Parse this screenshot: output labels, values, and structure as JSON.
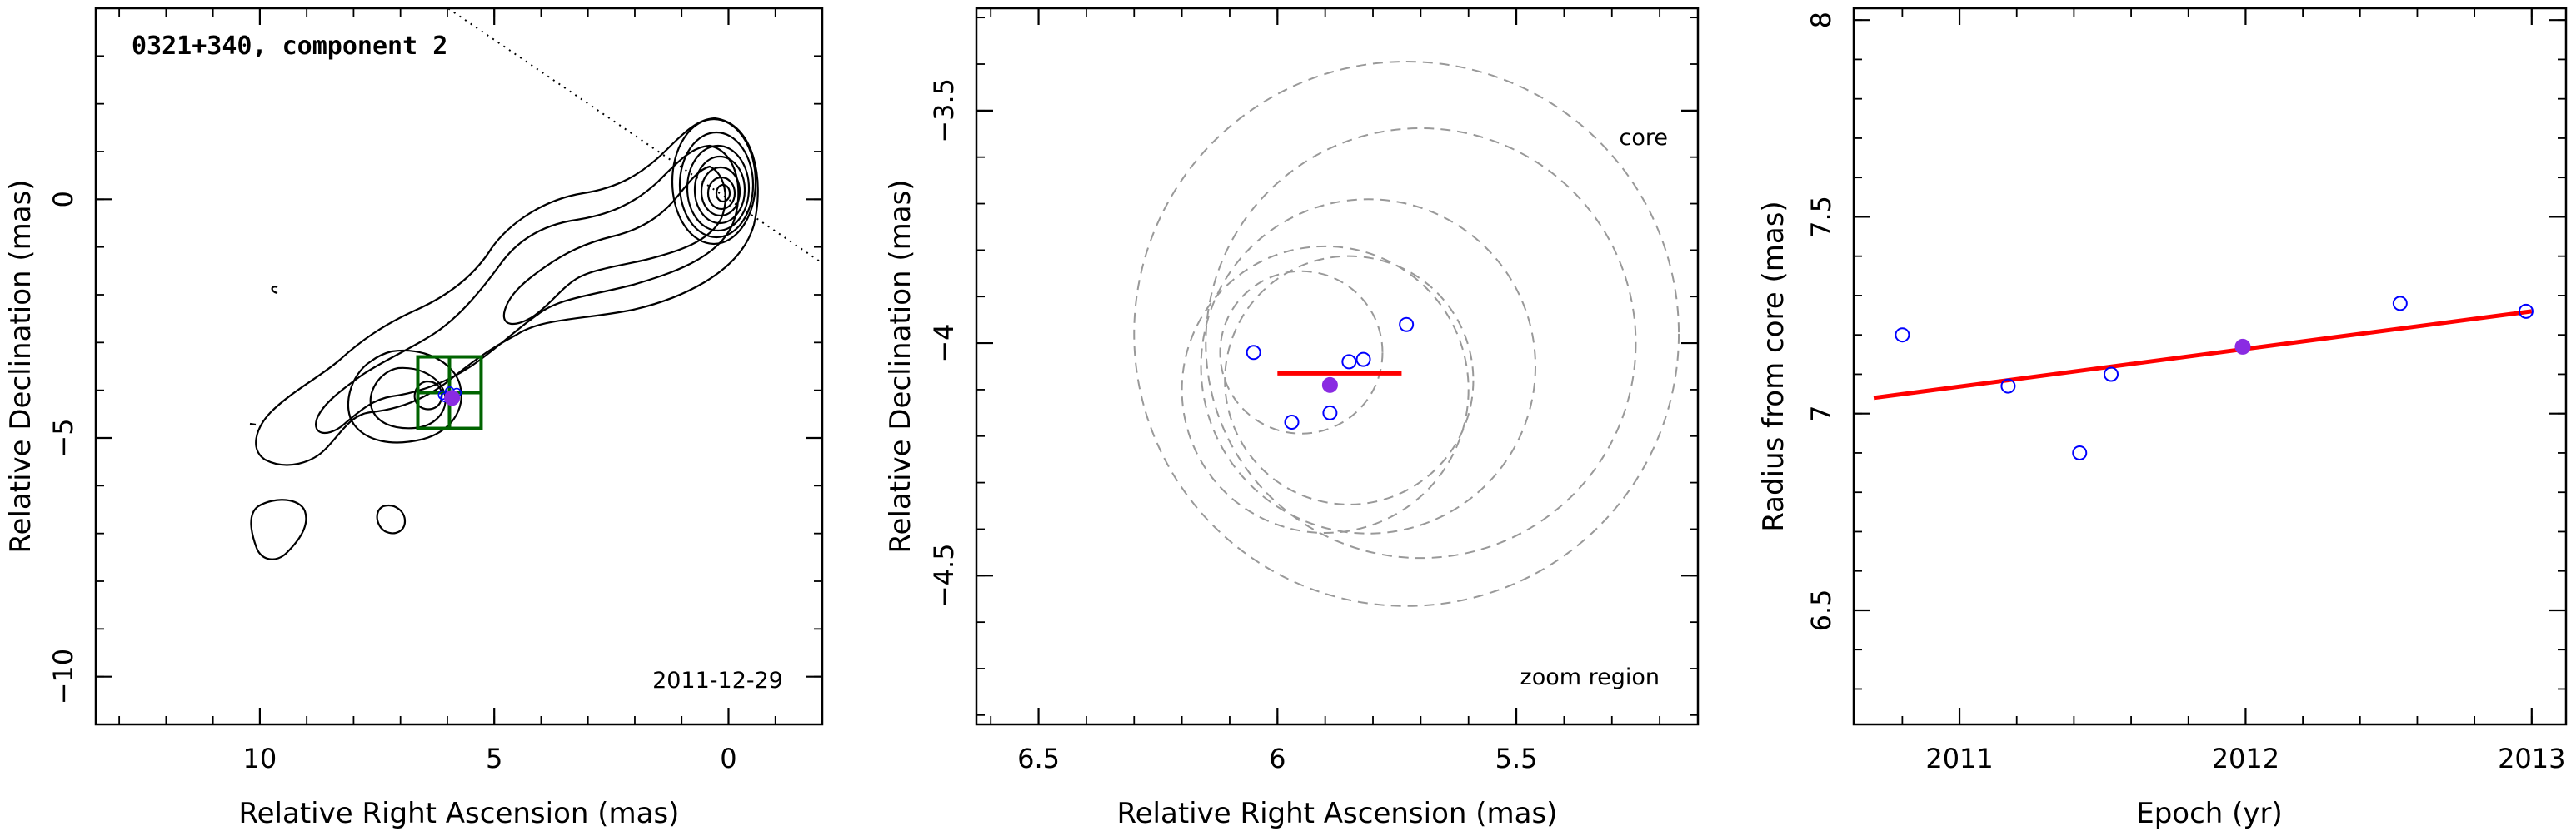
{
  "colors": {
    "axes": "#000000",
    "contour": "#000000",
    "box": "#006400",
    "point_open": "#0000ff",
    "point_filled": "#8a2be2",
    "fit": "#ff0000",
    "circles": "#999999"
  },
  "chart_data": [
    {
      "panel": "left",
      "type": "scatter",
      "title": "0321+340, component 2",
      "epoch_label": "2011-12-29",
      "xlabel": "Relative Right Ascension (mas)",
      "ylabel": "Relative Declination (mas)",
      "xlim": [
        13.5,
        -2.0
      ],
      "ylim": [
        -11.0,
        4.0
      ],
      "xticks": [
        10,
        5,
        0
      ],
      "yticks": [
        0,
        -5,
        -10
      ],
      "direction_line": {
        "slope": 0.668
      },
      "zoom_region": {
        "x": [
          5.28,
          6.63
        ],
        "y": [
          -4.8,
          -3.3
        ]
      },
      "components": [
        [
          6.1,
          -4.1
        ],
        [
          5.95,
          -4.02
        ],
        [
          5.8,
          -4.05
        ],
        [
          6.05,
          -4.15
        ]
      ],
      "component_current": [
        5.9,
        -4.16
      ]
    },
    {
      "panel": "middle",
      "type": "scatter",
      "title": "",
      "annotation_core": "core",
      "annotation_zoom": "zoom region",
      "xlabel": "Relative Right Ascension (mas)",
      "ylabel": "Relative Declination (mas)",
      "xlim": [
        6.63,
        5.12
      ],
      "ylim": [
        -4.82,
        -3.28
      ],
      "xticks": [
        6.5,
        6,
        5.5
      ],
      "yticks": [
        -3.5,
        -4,
        -4.5
      ],
      "points": [
        {
          "x": 6.05,
          "y": -4.02
        },
        {
          "x": 5.97,
          "y": -4.17
        },
        {
          "x": 5.89,
          "y": -4.15
        },
        {
          "x": 5.85,
          "y": -4.04
        },
        {
          "x": 5.82,
          "y": -4.035
        },
        {
          "x": 5.73,
          "y": -3.96
        }
      ],
      "point_current": {
        "x": 5.89,
        "y": -4.09
      },
      "fit_segment": {
        "x": [
          6.0,
          5.74
        ],
        "y": [
          -4.065,
          -4.065
        ]
      },
      "direction_line": {
        "slope": 0.668
      },
      "error_circles": [
        {
          "x": 5.95,
          "y": -4.02,
          "r": 0.17
        },
        {
          "x": 5.85,
          "y": -4.08,
          "r": 0.26
        },
        {
          "x": 5.9,
          "y": -4.1,
          "r": 0.3
        },
        {
          "x": 5.81,
          "y": -4.05,
          "r": 0.35
        },
        {
          "x": 5.7,
          "y": -4.0,
          "r": 0.45
        },
        {
          "x": 5.73,
          "y": -3.98,
          "r": 0.57
        }
      ]
    },
    {
      "panel": "right",
      "type": "scatter",
      "title": "",
      "xlabel": "Epoch (yr)",
      "ylabel": "Radius from core (mas)",
      "xlim": [
        2010.63,
        2013.12
      ],
      "ylim": [
        6.21,
        8.03
      ],
      "xticks": [
        2011,
        2012,
        2013
      ],
      "yticks": [
        6.5,
        7,
        7.5,
        8
      ],
      "points": [
        {
          "x": 2010.8,
          "y": 7.2
        },
        {
          "x": 2011.17,
          "y": 7.07
        },
        {
          "x": 2011.42,
          "y": 6.9
        },
        {
          "x": 2011.53,
          "y": 7.1
        },
        {
          "x": 2012.54,
          "y": 7.28
        },
        {
          "x": 2012.98,
          "y": 7.26
        }
      ],
      "point_current": {
        "x": 2011.99,
        "y": 7.17
      },
      "fit_line": {
        "x": [
          2010.7,
          2013.0
        ],
        "y": [
          7.04,
          7.26
        ]
      }
    }
  ]
}
